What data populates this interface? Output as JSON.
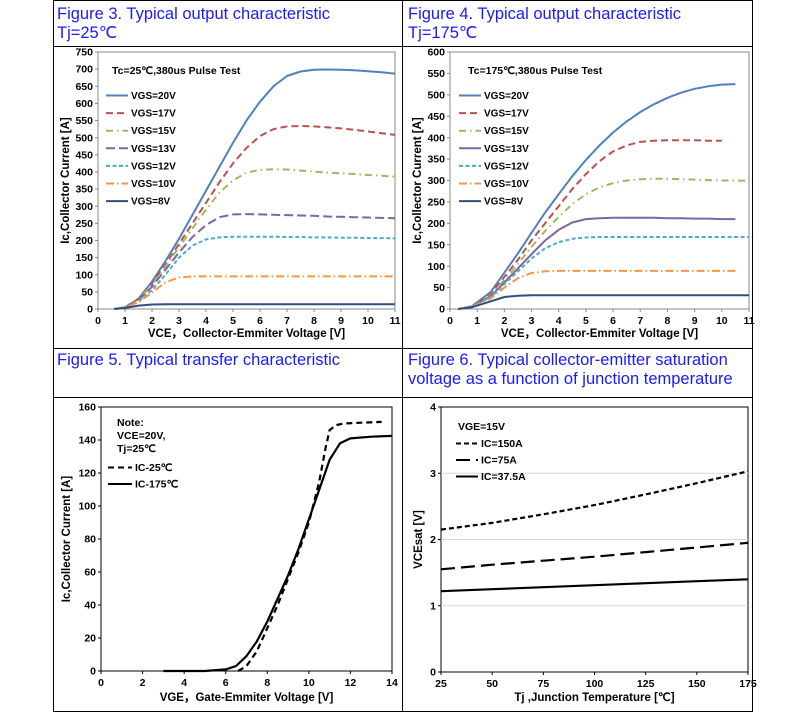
{
  "figures": [
    {
      "title_line1": "Figure 3. Typical output characteristic",
      "title_line2": "Tj=25℃",
      "chart_data": {
        "type": "line",
        "annotation": "Tc=25℃,380us Pulse Test",
        "xlabel": "VCE，Collector-Emmiter Voltage [V]",
        "ylabel": "Ic,Collector Current [A]",
        "xlim": [
          0,
          11
        ],
        "ylim": [
          0,
          750
        ],
        "xticks": [
          0,
          1,
          2,
          3,
          4,
          5,
          6,
          7,
          8,
          9,
          10,
          11
        ],
        "yticks": [
          0,
          50,
          100,
          150,
          200,
          250,
          300,
          350,
          400,
          450,
          500,
          550,
          600,
          650,
          700,
          750
        ],
        "series": [
          {
            "name": "VGS=20V",
            "color": "#4f81bd",
            "dash": "",
            "x": [
              0.6,
              1,
              1.5,
              2,
              2.5,
              3,
              3.5,
              4,
              4.5,
              5,
              5.5,
              6,
              6.5,
              7,
              7.5,
              8,
              8.5,
              9,
              9.5,
              10,
              10.5,
              11
            ],
            "y": [
              0,
              5,
              30,
              80,
              140,
              205,
              275,
              345,
              415,
              485,
              550,
              605,
              650,
              680,
              693,
              698,
              699,
              698,
              697,
              694,
              691,
              687
            ]
          },
          {
            "name": "VGS=17V",
            "color": "#c0504d",
            "dash": "7,4",
            "x": [
              0.6,
              1,
              1.5,
              2,
              2.5,
              3,
              3.5,
              4,
              4.5,
              5,
              5.5,
              6,
              6.5,
              7,
              7.5,
              8,
              8.5,
              9,
              9.5,
              10,
              10.5,
              11
            ],
            "y": [
              0,
              5,
              30,
              75,
              130,
              190,
              250,
              310,
              370,
              425,
              470,
              505,
              525,
              533,
              534,
              533,
              530,
              527,
              523,
              518,
              513,
              508
            ]
          },
          {
            "name": "VGS=15V",
            "color": "#9bbb59",
            "dash": "7,4,1.5,4",
            "x": [
              0.6,
              1,
              1.5,
              2,
              2.5,
              3,
              3.5,
              4,
              4.5,
              5,
              5.5,
              6,
              6.5,
              7,
              7.5,
              8,
              8.5,
              9,
              9.5,
              10,
              10.5,
              11
            ],
            "y": [
              0,
              5,
              28,
              70,
              125,
              180,
              235,
              290,
              340,
              375,
              398,
              406,
              408,
              407,
              404,
              401,
              398,
              396,
              394,
              391,
              389,
              386
            ]
          },
          {
            "name": "VGS=13V",
            "color": "#8064a2",
            "dash": "9,4",
            "x": [
              0.6,
              1,
              1.5,
              2,
              2.5,
              3,
              3.5,
              4,
              4.5,
              5,
              5.5,
              6,
              6.5,
              7,
              7.5,
              8,
              8.5,
              9,
              9.5,
              10,
              10.5,
              11
            ],
            "y": [
              0,
              5,
              26,
              65,
              115,
              165,
              210,
              245,
              268,
              276,
              277,
              276,
              275,
              274,
              273,
              272,
              270,
              269,
              268,
              267,
              266,
              265
            ]
          },
          {
            "name": "VGS=12V",
            "color": "#4bacc6",
            "dash": "4,2.5",
            "x": [
              0.6,
              1,
              1.5,
              2,
              2.5,
              3,
              3.5,
              4,
              4.5,
              5,
              5.5,
              6,
              6.5,
              7,
              7.5,
              8,
              8.5,
              9,
              9.5,
              10,
              10.5,
              11
            ],
            "y": [
              0,
              4,
              22,
              55,
              100,
              150,
              185,
              203,
              209,
              211,
              211,
              211,
              211,
              210,
              210,
              209,
              209,
              208,
              208,
              207,
              207,
              206
            ]
          },
          {
            "name": "VGS=10V",
            "color": "#f79646",
            "dash": "8,3,1.5,3",
            "x": [
              0.6,
              1,
              1.5,
              2,
              2.5,
              3,
              3.5,
              4,
              4.5,
              5,
              5.5,
              6,
              6.5,
              7,
              7.5,
              8,
              8.5,
              9,
              9.5,
              10,
              10.5,
              11
            ],
            "y": [
              0,
              4,
              20,
              48,
              78,
              92,
              95,
              95,
              95,
              95,
              95,
              95,
              95,
              95,
              95,
              95,
              95,
              95,
              95,
              95,
              95,
              95
            ]
          },
          {
            "name": "VGS=8V",
            "color": "#2e4f86",
            "dash": "",
            "x": [
              0.6,
              1,
              1.5,
              2,
              2.5,
              3,
              3.5,
              4,
              4.5,
              5,
              5.5,
              6,
              6.5,
              7,
              7.5,
              8,
              8.5,
              9,
              9.5,
              10,
              10.5,
              11
            ],
            "y": [
              0,
              3,
              10,
              13,
              14,
              14,
              14,
              14,
              14,
              14,
              14,
              14,
              14,
              14,
              14,
              14,
              14,
              14,
              14,
              14,
              14,
              14
            ]
          }
        ]
      }
    },
    {
      "title_line1": "Figure 4. Typical output characteristic",
      "title_line2": "Tj=175℃",
      "chart_data": {
        "type": "line",
        "annotation": "Tc=175℃,380us Pulse Test",
        "xlabel": "VCE，Collector-Emmiter Voltage [V]",
        "ylabel": "Ic,Collector Current [A]",
        "xlim": [
          0,
          11
        ],
        "ylim": [
          0,
          600
        ],
        "xticks": [
          0,
          1,
          2,
          3,
          4,
          5,
          6,
          7,
          8,
          9,
          10,
          11
        ],
        "yticks": [
          0,
          50,
          100,
          150,
          200,
          250,
          300,
          350,
          400,
          450,
          500,
          550,
          600
        ],
        "series": [
          {
            "name": "VGS=20V",
            "color": "#4f81bd",
            "dash": "",
            "x": [
              0.3,
              0.8,
              1.5,
              2,
              2.5,
              3,
              3.5,
              4,
              4.5,
              5,
              5.5,
              6,
              6.5,
              7,
              7.5,
              8,
              8.5,
              9,
              9.5,
              10,
              10.5
            ],
            "y": [
              0,
              6,
              40,
              85,
              130,
              178,
              225,
              268,
              310,
              348,
              382,
              412,
              438,
              460,
              478,
              493,
              505,
              514,
              520,
              524,
              525
            ]
          },
          {
            "name": "VGS=17V",
            "color": "#c0504d",
            "dash": "7,4",
            "x": [
              0.3,
              0.8,
              1.5,
              2,
              2.5,
              3,
              3.5,
              4,
              4.5,
              5,
              5.5,
              6,
              6.5,
              7,
              7.5,
              8,
              8.5,
              9,
              9.5,
              10
            ],
            "y": [
              0,
              5,
              35,
              75,
              115,
              160,
              200,
              240,
              280,
              315,
              345,
              368,
              382,
              390,
              393,
              394,
              394,
              394,
              393,
              393
            ]
          },
          {
            "name": "VGS=15V",
            "color": "#9bbb59",
            "dash": "7,4,1.5,4",
            "x": [
              0.3,
              0.8,
              1.5,
              2,
              2.5,
              3,
              3.5,
              4,
              4.5,
              5,
              5.5,
              6,
              6.5,
              7,
              7.5,
              8,
              8.5,
              9,
              9.5,
              10,
              10.5,
              11
            ],
            "y": [
              0,
              5,
              32,
              68,
              105,
              145,
              182,
              215,
              245,
              268,
              284,
              294,
              300,
              303,
              304,
              304,
              303,
              302,
              301,
              300,
              300,
              299
            ]
          },
          {
            "name": "VGS=13V",
            "color": "#8064a2",
            "dash": "",
            "x": [
              0.3,
              0.8,
              1.5,
              2,
              2.5,
              3,
              3.5,
              4,
              4.5,
              5,
              5.5,
              6,
              6.5,
              7,
              7.5,
              8,
              8.5,
              9,
              9.5,
              10,
              10.5
            ],
            "y": [
              0,
              5,
              30,
              62,
              95,
              128,
              160,
              185,
              202,
              210,
              212,
              213,
              213,
              213,
              213,
              212,
              212,
              211,
              211,
              210,
              210
            ]
          },
          {
            "name": "VGS=12V",
            "color": "#4bacc6",
            "dash": "4,2.5",
            "x": [
              0.3,
              0.8,
              1.5,
              2,
              2.5,
              3,
              3.5,
              4,
              4.5,
              5,
              5.5,
              6,
              6.5,
              7,
              7.5,
              8,
              8.5,
              9,
              9.5,
              10,
              10.5,
              11
            ],
            "y": [
              0,
              5,
              28,
              58,
              88,
              118,
              142,
              156,
              164,
              167,
              168,
              168,
              168,
              168,
              168,
              168,
              168,
              168,
              168,
              168,
              168,
              168
            ]
          },
          {
            "name": "VGS=10V",
            "color": "#f79646",
            "dash": "8,3,1.5,3",
            "x": [
              0.3,
              0.8,
              1.5,
              2,
              2.5,
              3,
              3.5,
              4,
              4.5,
              5,
              5.5,
              6,
              6.5,
              7,
              7.5,
              8,
              8.5,
              9,
              9.5,
              10,
              10.5
            ],
            "y": [
              0,
              5,
              25,
              50,
              72,
              84,
              88,
              89,
              89,
              89,
              89,
              89,
              89,
              89,
              89,
              89,
              89,
              89,
              89,
              89,
              89
            ]
          },
          {
            "name": "VGS=8V",
            "color": "#2e4f86",
            "dash": "",
            "x": [
              0.3,
              0.8,
              1.5,
              2,
              2.5,
              3,
              3.5,
              4,
              4.5,
              5,
              5.5,
              6,
              6.5,
              7,
              7.5,
              8,
              8.5,
              9,
              9.5,
              10,
              10.5,
              11
            ],
            "y": [
              0,
              4,
              18,
              28,
              31,
              32,
              32,
              32,
              32,
              32,
              32,
              32,
              32,
              32,
              32,
              32,
              32,
              32,
              32,
              32,
              32,
              32
            ]
          }
        ]
      }
    },
    {
      "title_line1": "Figure 5. Typical transfer characteristic",
      "title_line2": "",
      "chart_data": {
        "type": "line",
        "annotation_lines": [
          "Note:",
          "VCE=20V,",
          "Tj=25℃"
        ],
        "xlabel": "VGE，Gate-Emmiter Voltage [V]",
        "ylabel": "Ic,Collector Current [A]",
        "xlim": [
          0,
          14
        ],
        "ylim": [
          0,
          160
        ],
        "xticks": [
          0,
          2,
          4,
          6,
          8,
          10,
          12,
          14
        ],
        "yticks": [
          0,
          20,
          40,
          60,
          80,
          100,
          120,
          140,
          160
        ],
        "series": [
          {
            "name": "IC-25℃",
            "color": "#000000",
            "dash": "6,4",
            "x": [
              6.6,
              7,
              7.5,
              8,
              8.5,
              9,
              9.5,
              10,
              10.5,
              10.8,
              11,
              11.3,
              11.7,
              12.5,
              13.5
            ],
            "y": [
              0,
              3,
              12,
              26,
              40,
              56,
              72,
              90,
              115,
              135,
              146,
              149,
              150,
              150.5,
              151
            ]
          },
          {
            "name": "IC-175℃",
            "color": "#000000",
            "dash": "",
            "x": [
              3,
              5,
              6,
              6.5,
              7,
              7.5,
              8,
              8.5,
              9,
              9.5,
              10,
              10.5,
              11,
              11.5,
              12,
              13,
              14
            ],
            "y": [
              0,
              0,
              1,
              3,
              9,
              18,
              30,
              44,
              58,
              74,
              92,
              110,
              128,
              138,
              141,
              142,
              142.5
            ]
          }
        ]
      }
    },
    {
      "title_line1": "Figure 6. Typical collector-emitter saturation",
      "title_line2": "voltage as a function of junction temperature",
      "chart_data": {
        "type": "line",
        "annotation": "VGE=15V",
        "xlabel": "Tj ,Junction Temperature [℃]",
        "ylabel": "VCEsat [V]",
        "xlim": [
          25,
          175
        ],
        "ylim": [
          0,
          4
        ],
        "xticks": [
          25,
          50,
          75,
          100,
          125,
          150,
          175
        ],
        "yticks": [
          0,
          1,
          2,
          3,
          4
        ],
        "series": [
          {
            "name": "IC=150A",
            "color": "#000000",
            "dash": "5,3",
            "x": [
              25,
              50,
              75,
              100,
              125,
              150,
              175
            ],
            "y": [
              2.15,
              2.25,
              2.38,
              2.52,
              2.68,
              2.85,
              3.03
            ]
          },
          {
            "name": "IC=75A",
            "color": "#000000",
            "dash": "14,6",
            "x": [
              25,
              50,
              75,
              100,
              125,
              150,
              175
            ],
            "y": [
              1.55,
              1.62,
              1.68,
              1.74,
              1.81,
              1.88,
              1.95
            ]
          },
          {
            "name": "IC=37.5A",
            "color": "#000000",
            "dash": "",
            "x": [
              25,
              50,
              75,
              100,
              125,
              150,
              175
            ],
            "y": [
              1.22,
              1.25,
              1.28,
              1.31,
              1.34,
              1.37,
              1.4
            ]
          }
        ]
      }
    }
  ]
}
